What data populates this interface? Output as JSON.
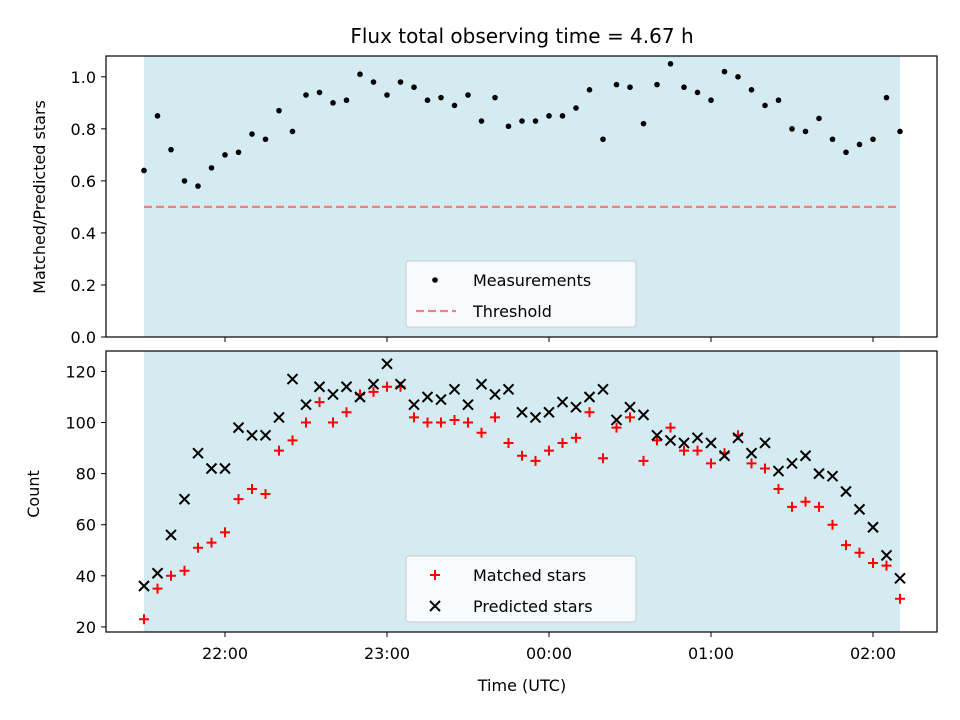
{
  "chart_data": [
    {
      "type": "scatter",
      "title": "Flux total observing time = 4.67 h",
      "xlabel": "",
      "ylabel": "Matched/Predicted stars",
      "ylim": [
        0,
        1.08
      ],
      "yticks": [
        "0.0",
        "0.2",
        "0.4",
        "0.6",
        "0.8",
        "1.0"
      ],
      "legend_position": "lower-center",
      "background_color": "#add8e6",
      "threshold": {
        "name": "Threshold",
        "value": 0.5,
        "color": "#f08080"
      },
      "series": [
        {
          "name": "Measurements",
          "color": "#000000",
          "marker": "dot",
          "points": [
            [
              "21:30",
              0.64
            ],
            [
              "21:35",
              0.85
            ],
            [
              "21:40",
              0.72
            ],
            [
              "21:45",
              0.6
            ],
            [
              "21:50",
              0.58
            ],
            [
              "21:55",
              0.65
            ],
            [
              "22:00",
              0.7
            ],
            [
              "22:05",
              0.71
            ],
            [
              "22:10",
              0.78
            ],
            [
              "22:15",
              0.76
            ],
            [
              "22:20",
              0.87
            ],
            [
              "22:25",
              0.79
            ],
            [
              "22:30",
              0.93
            ],
            [
              "22:35",
              0.94
            ],
            [
              "22:40",
              0.9
            ],
            [
              "22:45",
              0.91
            ],
            [
              "22:50",
              1.01
            ],
            [
              "22:55",
              0.98
            ],
            [
              "23:00",
              0.93
            ],
            [
              "23:05",
              0.98
            ],
            [
              "23:10",
              0.96
            ],
            [
              "23:15",
              0.91
            ],
            [
              "23:20",
              0.92
            ],
            [
              "23:25",
              0.89
            ],
            [
              "23:30",
              0.93
            ],
            [
              "23:35",
              0.83
            ],
            [
              "23:40",
              0.92
            ],
            [
              "23:45",
              0.81
            ],
            [
              "23:50",
              0.83
            ],
            [
              "23:55",
              0.83
            ],
            [
              "00:00",
              0.85
            ],
            [
              "00:05",
              0.85
            ],
            [
              "00:10",
              0.88
            ],
            [
              "00:15",
              0.95
            ],
            [
              "00:20",
              0.76
            ],
            [
              "00:25",
              0.97
            ],
            [
              "00:30",
              0.96
            ],
            [
              "00:35",
              0.82
            ],
            [
              "00:40",
              0.97
            ],
            [
              "00:45",
              1.05
            ],
            [
              "00:50",
              0.96
            ],
            [
              "00:55",
              0.94
            ],
            [
              "01:00",
              0.91
            ],
            [
              "01:05",
              1.02
            ],
            [
              "01:10",
              1.0
            ],
            [
              "01:15",
              0.95
            ],
            [
              "01:20",
              0.89
            ],
            [
              "01:25",
              0.91
            ],
            [
              "01:30",
              0.8
            ],
            [
              "01:35",
              0.79
            ],
            [
              "01:40",
              0.84
            ],
            [
              "01:45",
              0.76
            ],
            [
              "01:50",
              0.71
            ],
            [
              "01:55",
              0.74
            ],
            [
              "02:00",
              0.76
            ],
            [
              "02:05",
              0.92
            ],
            [
              "02:10",
              0.79
            ]
          ]
        }
      ]
    },
    {
      "type": "scatter",
      "title": "",
      "xlabel": "Time (UTC)",
      "ylabel": "Count",
      "ylim": [
        18,
        128
      ],
      "yticks": [
        "20",
        "40",
        "60",
        "80",
        "100",
        "120"
      ],
      "xticks": [
        "22:00",
        "23:00",
        "00:00",
        "01:00",
        "02:00"
      ],
      "legend_position": "lower-center",
      "background_color": "#add8e6",
      "series": [
        {
          "name": "Matched stars",
          "color": "#ff0000",
          "marker": "plus",
          "points": [
            [
              "21:30",
              23
            ],
            [
              "21:35",
              35
            ],
            [
              "21:40",
              40
            ],
            [
              "21:45",
              42
            ],
            [
              "21:50",
              51
            ],
            [
              "21:55",
              53
            ],
            [
              "22:00",
              57
            ],
            [
              "22:05",
              70
            ],
            [
              "22:10",
              74
            ],
            [
              "22:15",
              72
            ],
            [
              "22:20",
              89
            ],
            [
              "22:25",
              93
            ],
            [
              "22:30",
              100
            ],
            [
              "22:35",
              108
            ],
            [
              "22:40",
              100
            ],
            [
              "22:45",
              104
            ],
            [
              "22:50",
              111
            ],
            [
              "22:55",
              112
            ],
            [
              "23:00",
              114
            ],
            [
              "23:05",
              114
            ],
            [
              "23:10",
              102
            ],
            [
              "23:15",
              100
            ],
            [
              "23:20",
              100
            ],
            [
              "23:25",
              101
            ],
            [
              "23:30",
              100
            ],
            [
              "23:35",
              96
            ],
            [
              "23:40",
              102
            ],
            [
              "23:45",
              92
            ],
            [
              "23:50",
              87
            ],
            [
              "23:55",
              85
            ],
            [
              "00:00",
              89
            ],
            [
              "00:05",
              92
            ],
            [
              "00:10",
              94
            ],
            [
              "00:15",
              104
            ],
            [
              "00:20",
              86
            ],
            [
              "00:25",
              98
            ],
            [
              "00:30",
              102
            ],
            [
              "00:35",
              85
            ],
            [
              "00:40",
              93
            ],
            [
              "00:45",
              98
            ],
            [
              "00:50",
              89
            ],
            [
              "00:55",
              89
            ],
            [
              "01:00",
              84
            ],
            [
              "01:05",
              88
            ],
            [
              "01:10",
              95
            ],
            [
              "01:15",
              84
            ],
            [
              "01:20",
              82
            ],
            [
              "01:25",
              74
            ],
            [
              "01:30",
              67
            ],
            [
              "01:35",
              69
            ],
            [
              "01:40",
              67
            ],
            [
              "01:45",
              60
            ],
            [
              "01:50",
              52
            ],
            [
              "01:55",
              49
            ],
            [
              "02:00",
              45
            ],
            [
              "02:05",
              44
            ],
            [
              "02:10",
              31
            ]
          ]
        },
        {
          "name": "Predicted stars",
          "color": "#000000",
          "marker": "x",
          "points": [
            [
              "21:30",
              36
            ],
            [
              "21:35",
              41
            ],
            [
              "21:40",
              56
            ],
            [
              "21:45",
              70
            ],
            [
              "21:50",
              88
            ],
            [
              "21:55",
              82
            ],
            [
              "22:00",
              82
            ],
            [
              "22:05",
              98
            ],
            [
              "22:10",
              95
            ],
            [
              "22:15",
              95
            ],
            [
              "22:20",
              102
            ],
            [
              "22:25",
              117
            ],
            [
              "22:30",
              107
            ],
            [
              "22:35",
              114
            ],
            [
              "22:40",
              111
            ],
            [
              "22:45",
              114
            ],
            [
              "22:50",
              110
            ],
            [
              "22:55",
              115
            ],
            [
              "23:00",
              123
            ],
            [
              "23:05",
              115
            ],
            [
              "23:10",
              107
            ],
            [
              "23:15",
              110
            ],
            [
              "23:20",
              109
            ],
            [
              "23:25",
              113
            ],
            [
              "23:30",
              107
            ],
            [
              "23:35",
              115
            ],
            [
              "23:40",
              111
            ],
            [
              "23:45",
              113
            ],
            [
              "23:50",
              104
            ],
            [
              "23:55",
              102
            ],
            [
              "00:00",
              104
            ],
            [
              "00:05",
              108
            ],
            [
              "00:10",
              106
            ],
            [
              "00:15",
              110
            ],
            [
              "00:20",
              113
            ],
            [
              "00:25",
              101
            ],
            [
              "00:30",
              106
            ],
            [
              "00:35",
              103
            ],
            [
              "00:40",
              95
            ],
            [
              "00:45",
              93
            ],
            [
              "00:50",
              92
            ],
            [
              "00:55",
              94
            ],
            [
              "01:00",
              92
            ],
            [
              "01:05",
              87
            ],
            [
              "01:10",
              94
            ],
            [
              "01:15",
              88
            ],
            [
              "01:20",
              92
            ],
            [
              "01:25",
              81
            ],
            [
              "01:30",
              84
            ],
            [
              "01:35",
              87
            ],
            [
              "01:40",
              80
            ],
            [
              "01:45",
              79
            ],
            [
              "01:50",
              73
            ],
            [
              "01:55",
              66
            ],
            [
              "02:00",
              59
            ],
            [
              "02:05",
              48
            ],
            [
              "02:10",
              39
            ]
          ]
        }
      ]
    }
  ]
}
